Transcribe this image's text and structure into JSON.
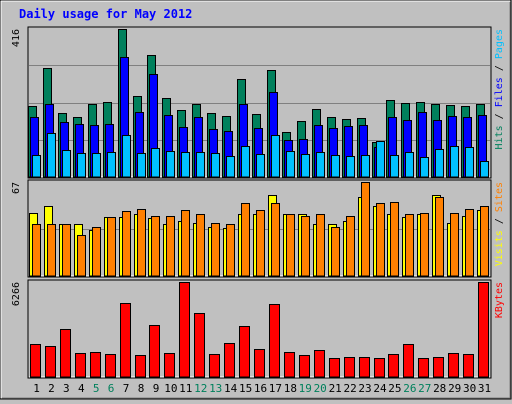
{
  "chart_data": {
    "type": "bar",
    "title": "Daily usage for May 2012",
    "colors": {
      "background": "#c0c0c0",
      "panel": "#c0c0c0",
      "title": "#0000ff",
      "hits": "#00805c",
      "files": "#0000ff",
      "pages": "#00c0ff",
      "visits": "#ffff00",
      "sites": "#ff8000",
      "kbytes": "#ff0000",
      "weekend_label": "#00805c",
      "weekday_label": "#000000"
    },
    "x": [
      "1",
      "2",
      "3",
      "4",
      "5",
      "6",
      "7",
      "8",
      "9",
      "10",
      "11",
      "12",
      "13",
      "14",
      "15",
      "16",
      "17",
      "18",
      "19",
      "20",
      "21",
      "22",
      "23",
      "24",
      "25",
      "26",
      "27",
      "28",
      "29",
      "30",
      "31"
    ],
    "weekend_days": [
      5,
      6,
      12,
      13,
      19,
      20,
      26,
      27
    ],
    "panels": [
      {
        "id": "hits-files-pages",
        "max_label": "416",
        "ymax": 416,
        "right_labels": [
          {
            "text": "Hits",
            "color": "#00805c"
          },
          {
            "text": " / ",
            "color": "#000000"
          },
          {
            "text": "Files",
            "color": "#0000ff"
          },
          {
            "text": " / ",
            "color": "#000000"
          },
          {
            "text": "Pages",
            "color": "#00c0ff"
          }
        ],
        "series": [
          {
            "name": "Hits",
            "color": "#00805c",
            "values": [
              200,
              307,
              180,
              170,
              205,
              212,
              416,
              227,
              342,
              223,
              188,
              205,
              180,
              172,
              276,
              178,
              300,
              127,
              158,
              192,
              170,
              164,
              167,
              98,
              217,
              208,
              212,
              205,
              203,
              200,
              206
            ]
          },
          {
            "name": "Files",
            "color": "#0000ff",
            "values": [
              170,
              205,
              155,
              148,
              145,
              148,
              338,
              183,
              290,
              173,
              140,
              170,
              135,
              130,
              205,
              138,
              238,
              103,
              108,
              145,
              138,
              142,
              147,
              85,
              170,
              160,
              182,
              160,
              172,
              168,
              173
            ]
          },
          {
            "name": "Pages",
            "color": "#00c0ff",
            "values": [
              62,
              123,
              77,
              67,
              67,
              69,
              118,
              68,
              81,
              73,
              71,
              70,
              68,
              60,
              88,
              65,
              117,
              73,
              66,
              69,
              62,
              59,
              62,
              100,
              62,
              70,
              57,
              80,
              86,
              85,
              46
            ]
          }
        ]
      },
      {
        "id": "visits-sites",
        "max_label": "67",
        "ymax": 67,
        "right_labels": [
          {
            "text": "Visits",
            "color": "#ffff00"
          },
          {
            "text": " / ",
            "color": "#000000"
          },
          {
            "text": "Sites",
            "color": "#ff8000"
          }
        ],
        "series": [
          {
            "name": "Visits",
            "color": "#ffff00",
            "values": [
              45,
              50,
              37,
              37,
              33,
              42,
              42,
              44,
              41,
              37,
              39,
              38,
              35,
              34,
              44,
              44,
              58,
              44,
              44,
              37,
              37,
              39,
              56,
              50,
              44,
              42,
              44,
              58,
              38,
              43,
              47
            ]
          },
          {
            "name": "Sites",
            "color": "#ff8000",
            "values": [
              37,
              37,
              37,
              29,
              35,
              42,
              46,
              48,
              43,
              43,
              47,
              44,
              38,
              37,
              52,
              47,
              52,
              44,
              43,
              44,
              35,
              43,
              67,
              52,
              53,
              44,
              45,
              56,
              45,
              48,
              50
            ]
          }
        ]
      },
      {
        "id": "kbytes",
        "max_label": "6266",
        "ymax": 6266,
        "right_labels": [
          {
            "text": "KBytes",
            "color": "#ff0000"
          }
        ],
        "series": [
          {
            "name": "KBytes",
            "color": "#ff0000",
            "values": [
              2190,
              2030,
              3180,
              1600,
              1650,
              1530,
              4880,
              1480,
              3440,
              1610,
              6266,
              4190,
              1500,
              2270,
              3350,
              1820,
              4810,
              1650,
              1430,
              1810,
              1260,
              1350,
              1310,
              1240,
              1540,
              2170,
              1280,
              1330,
              1580,
              1520,
              6266
            ]
          }
        ]
      }
    ]
  }
}
